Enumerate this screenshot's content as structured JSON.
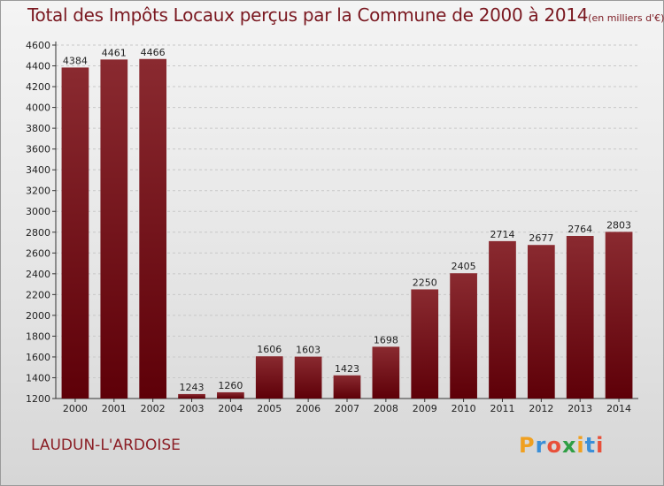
{
  "header": {
    "title": "Total des Impôts Locaux perçus par la Commune de 2000 à 2014",
    "unit": "(en milliers d'€)"
  },
  "footer": {
    "commune": "LAUDUN-L'ARDOISE",
    "brand": [
      "P",
      "r",
      "o",
      "x",
      "i",
      "t",
      "i"
    ],
    "brand_colors": [
      "#f0a020",
      "#3b8fd8",
      "#e8503a",
      "#2f9e44",
      "#f0a020",
      "#3b8fd8",
      "#e8503a"
    ]
  },
  "colors": {
    "bar_top": "#8a2a30",
    "bar_bottom": "#5e0008",
    "grid": "#c8c8c8",
    "axis": "#333333"
  },
  "chart_data": {
    "type": "bar",
    "title": "Total des Impôts Locaux perçus par la Commune de 2000 à 2014",
    "categories": [
      "2000",
      "2001",
      "2002",
      "2003",
      "2004",
      "2005",
      "2006",
      "2007",
      "2008",
      "2009",
      "2010",
      "2011",
      "2012",
      "2013",
      "2014"
    ],
    "values": [
      4384,
      4461,
      4466,
      1243,
      1260,
      1606,
      1603,
      1423,
      1698,
      2250,
      2405,
      2714,
      2677,
      2764,
      2803
    ],
    "ylim": [
      1200,
      4600
    ],
    "yticks": [
      1200,
      1400,
      1600,
      1800,
      2000,
      2200,
      2400,
      2600,
      2800,
      3000,
      3200,
      3400,
      3600,
      3800,
      4000,
      4200,
      4400,
      4600
    ],
    "grid": true,
    "xlabel": "",
    "ylabel": ""
  }
}
